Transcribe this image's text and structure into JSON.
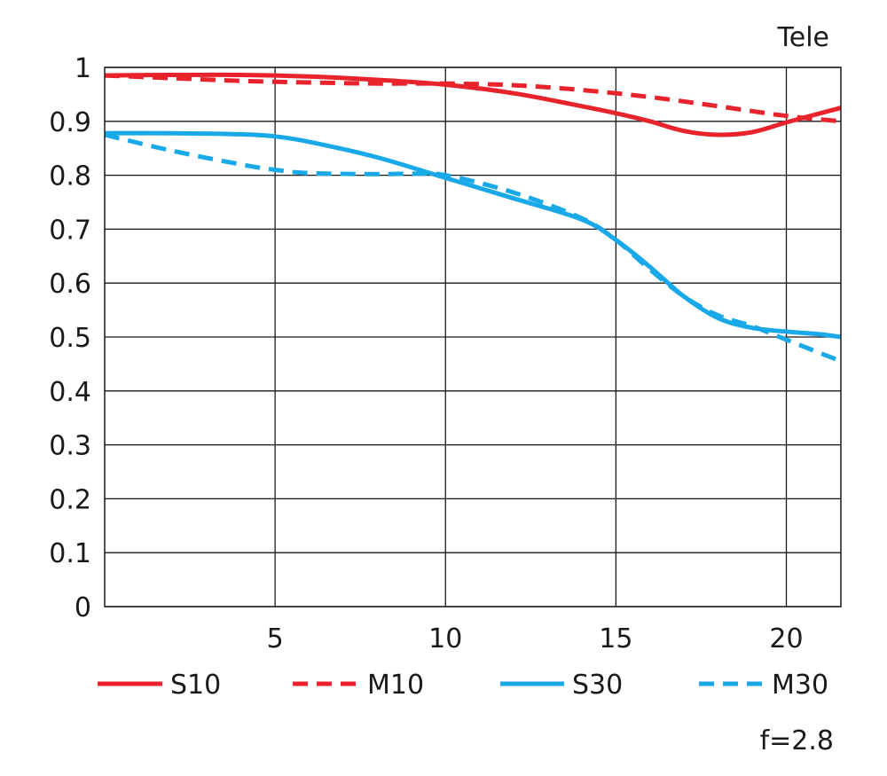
{
  "chart_data": {
    "type": "line",
    "title": "Tele",
    "note": "f=2.8",
    "xlabel": "",
    "ylabel": "",
    "xlim": [
      0,
      21.6
    ],
    "ylim": [
      0,
      1
    ],
    "x_ticks": [
      5,
      10,
      15,
      20
    ],
    "y_ticks": [
      0,
      0.1,
      0.2,
      0.3,
      0.4,
      0.5,
      0.6,
      0.7,
      0.8,
      0.9,
      1
    ],
    "y_tick_labels": [
      "0",
      "0.1",
      "0.2",
      "0.3",
      "0.4",
      "0.5",
      "0.6",
      "0.7",
      "0.8",
      "0.9",
      "1"
    ],
    "grid": true,
    "legend_position": "bottom",
    "colors": {
      "red": "#e8232b",
      "blue": "#1aa9e8"
    },
    "series": [
      {
        "name": "S10",
        "style": "solid",
        "color": "#e8232b",
        "x": [
          0,
          2,
          4,
          6,
          8,
          10,
          12,
          14,
          15,
          16,
          17,
          18,
          19,
          20,
          21,
          21.6
        ],
        "y": [
          0.985,
          0.986,
          0.986,
          0.983,
          0.977,
          0.968,
          0.952,
          0.928,
          0.915,
          0.9,
          0.882,
          0.875,
          0.88,
          0.898,
          0.915,
          0.925
        ]
      },
      {
        "name": "M10",
        "style": "dashed",
        "color": "#e8232b",
        "x": [
          0,
          2,
          4,
          6,
          8,
          10,
          12,
          14,
          16,
          18,
          20,
          21.6
        ],
        "y": [
          0.985,
          0.98,
          0.975,
          0.972,
          0.97,
          0.97,
          0.967,
          0.958,
          0.945,
          0.928,
          0.91,
          0.9
        ]
      },
      {
        "name": "S30",
        "style": "solid",
        "color": "#1aa9e8",
        "x": [
          0,
          2,
          4,
          5,
          6,
          8,
          10,
          12,
          14,
          15,
          16,
          17,
          18,
          19,
          20,
          21,
          21.6
        ],
        "y": [
          0.878,
          0.878,
          0.876,
          0.872,
          0.862,
          0.833,
          0.795,
          0.757,
          0.718,
          0.68,
          0.63,
          0.575,
          0.535,
          0.517,
          0.51,
          0.505,
          0.5
        ]
      },
      {
        "name": "M30",
        "style": "dashed",
        "color": "#1aa9e8",
        "x": [
          0,
          2,
          4,
          5,
          6,
          8,
          9,
          10,
          12,
          14,
          15,
          16,
          17,
          18,
          19,
          20,
          21,
          21.6
        ],
        "y": [
          0.875,
          0.845,
          0.82,
          0.81,
          0.804,
          0.802,
          0.803,
          0.8,
          0.768,
          0.72,
          0.68,
          0.625,
          0.575,
          0.54,
          0.52,
          0.495,
          0.47,
          0.455
        ]
      }
    ]
  }
}
